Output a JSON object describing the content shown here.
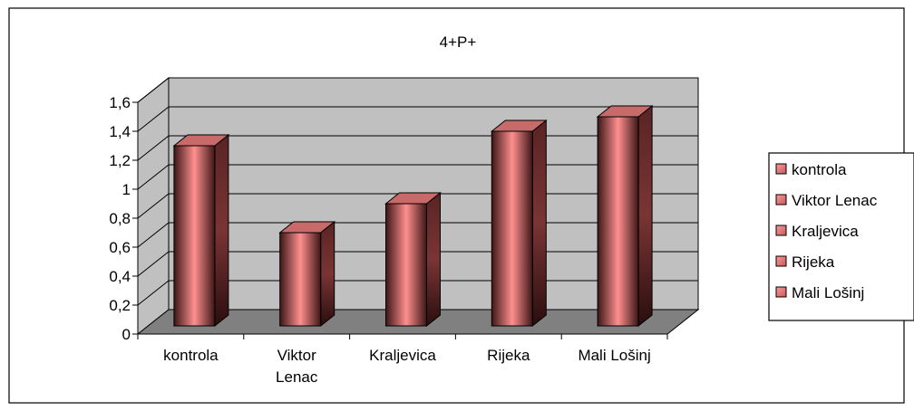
{
  "chart_data": {
    "type": "bar",
    "title": "4+P+",
    "xlabel": "",
    "ylabel": "",
    "categories": [
      [
        "kontrola"
      ],
      [
        "Viktor",
        "Lenac"
      ],
      [
        "Kraljevica"
      ],
      [
        "Rijeka"
      ],
      [
        "Mali Lošinj"
      ]
    ],
    "values": [
      1.3,
      0.7,
      0.9,
      1.4,
      1.5
    ],
    "ylim": [
      0,
      1.6
    ],
    "yticks": [
      "0",
      "0,2",
      "0,4",
      "0,6",
      "0,8",
      "1",
      "1,2",
      "1,4",
      "1,6"
    ],
    "legend": [
      "kontrola",
      "Viktor Lenac",
      "Kraljevica",
      "Rijeka",
      "Mali Lošinj"
    ],
    "legend_position": "right",
    "grid": true,
    "style": "3d-column"
  },
  "colors": {
    "bar_light": "#ff8f8f",
    "bar_mid": "#b85858",
    "bar_dark": "#4a1c1c",
    "wall": "#c0c0c0",
    "floor": "#808080",
    "grid": "#000000"
  }
}
